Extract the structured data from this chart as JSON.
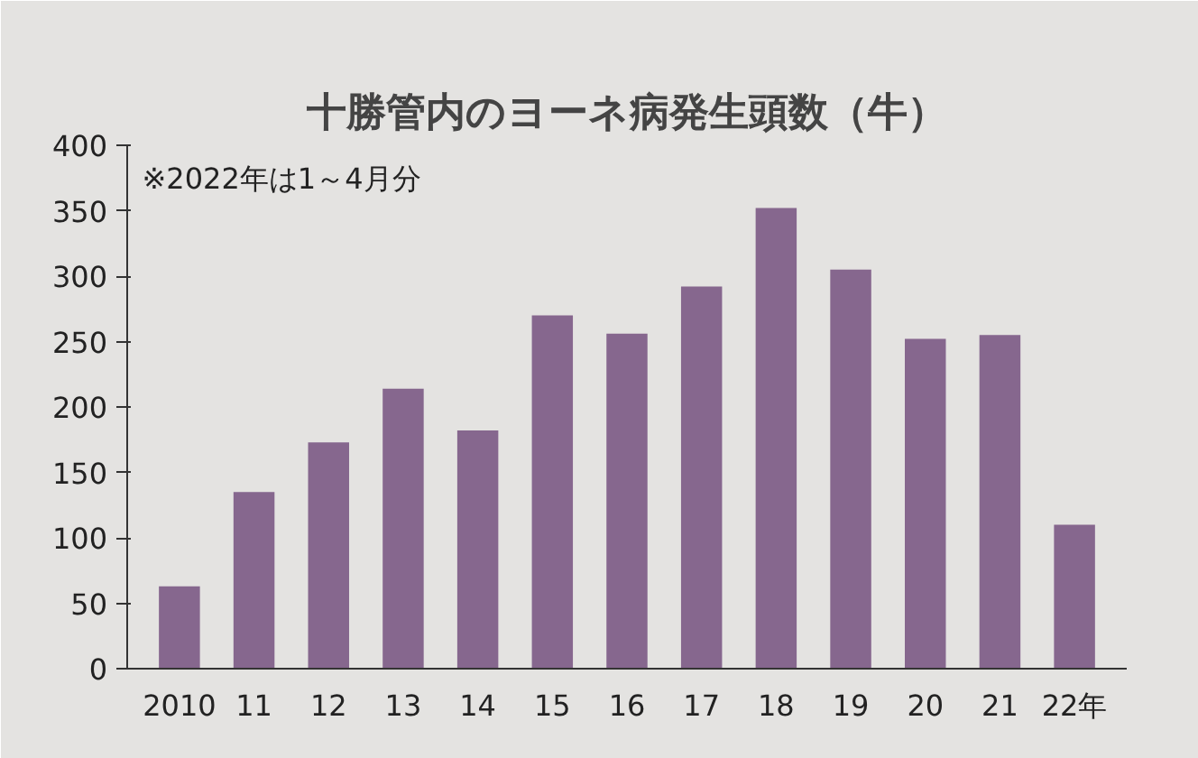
{
  "chart_data": {
    "type": "bar",
    "title": "十勝管内のヨーネ病発生頭数（牛）",
    "annotations": [
      "※2022年は1～4月分"
    ],
    "xlabel": "年",
    "categories": [
      "2010",
      "11",
      "12",
      "13",
      "14",
      "15",
      "16",
      "17",
      "18",
      "19",
      "20",
      "21",
      "22"
    ],
    "values": [
      63,
      135,
      173,
      214,
      182,
      270,
      256,
      292,
      352,
      305,
      252,
      255,
      110
    ],
    "color": "#86678e",
    "ylim": [
      0,
      400
    ],
    "yticks": [
      0,
      50,
      100,
      150,
      200,
      250,
      300,
      350,
      400
    ]
  }
}
